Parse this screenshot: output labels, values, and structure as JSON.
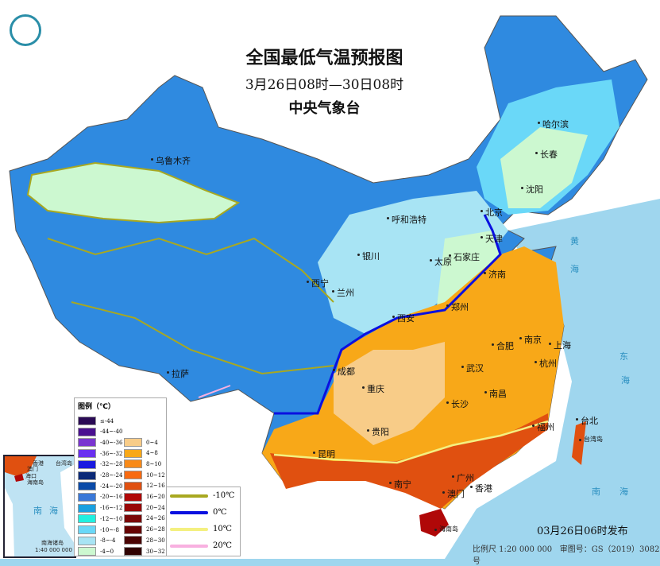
{
  "title": "全国最低气温预报图",
  "period": "3月26日08时—30日08时",
  "issuer": "中央气象台",
  "logo": "中央气象台 logo",
  "issued": "03月26日06时发布",
  "scale": "比例尺 1:20 000 000",
  "map_number": "审图号：GS（2019）3082号",
  "legend": {
    "title": "图例（℃）",
    "cold": [
      {
        "label": "≤-44",
        "color": "#2a0a55"
      },
      {
        "label": "-44~-40",
        "color": "#4a1090"
      },
      {
        "label": "-40~-36",
        "color": "#7a35d0"
      },
      {
        "label": "-36~-32",
        "color": "#6a30f0"
      },
      {
        "label": "-32~-28",
        "color": "#1a1ae0"
      },
      {
        "label": "-28~-24",
        "color": "#0c2a78"
      },
      {
        "label": "-24~-20",
        "color": "#0a4aa8"
      },
      {
        "label": "-20~-16",
        "color": "#3a78d8"
      },
      {
        "label": "-16~-12",
        "color": "#19a0e0"
      },
      {
        "label": "-12~-10",
        "color": "#20f0e0"
      },
      {
        "label": "-10~-8",
        "color": "#6ad8f8"
      },
      {
        "label": "-8~-4",
        "color": "#a8e4f4"
      },
      {
        "label": "-4~0",
        "color": "#ccf8d0"
      }
    ],
    "warm": [
      {
        "label": "0~4",
        "color": "#f8cc88"
      },
      {
        "label": "4~8",
        "color": "#f8a818"
      },
      {
        "label": "8~10",
        "color": "#f88a18"
      },
      {
        "label": "10~12",
        "color": "#f86a10"
      },
      {
        "label": "12~16",
        "color": "#e05010"
      },
      {
        "label": "16~20",
        "color": "#b00808"
      },
      {
        "label": "20~24",
        "color": "#980808"
      },
      {
        "label": "24~26",
        "color": "#7a0808"
      },
      {
        "label": "26~28",
        "color": "#660404"
      },
      {
        "label": "28~30",
        "color": "#4a0404"
      },
      {
        "label": "30~32",
        "color": "#300202"
      }
    ],
    "isotherms": [
      {
        "label": "-10℃",
        "color": "#a8a820"
      },
      {
        "label": "0℃",
        "color": "#0a10e0"
      },
      {
        "label": "10℃",
        "color": "#f4f080"
      },
      {
        "label": "20℃",
        "color": "#f8b0e0"
      }
    ]
  },
  "cities": [
    "乌鲁木齐",
    "哈尔滨",
    "长春",
    "沈阳",
    "呼和浩特",
    "北京",
    "天津",
    "银川",
    "太原",
    "石家庄",
    "济南",
    "西宁",
    "兰州",
    "郑州",
    "西安",
    "合肥",
    "南京",
    "上海",
    "成都",
    "武汉",
    "杭州",
    "重庆",
    "长沙",
    "南昌",
    "拉萨",
    "贵阳",
    "福州",
    "台北",
    "昆明",
    "南宁",
    "广州",
    "香港",
    "澳门",
    "海口",
    "海南岛",
    "台湾岛"
  ],
  "seas": [
    "黄",
    "海",
    "东",
    "海",
    "南",
    "海"
  ],
  "inset": {
    "labels": [
      "香港",
      "澳门",
      "台湾岛",
      "海口",
      "海南岛",
      "南",
      "海",
      "南海诸岛"
    ],
    "scale": "1:40 000 000"
  }
}
